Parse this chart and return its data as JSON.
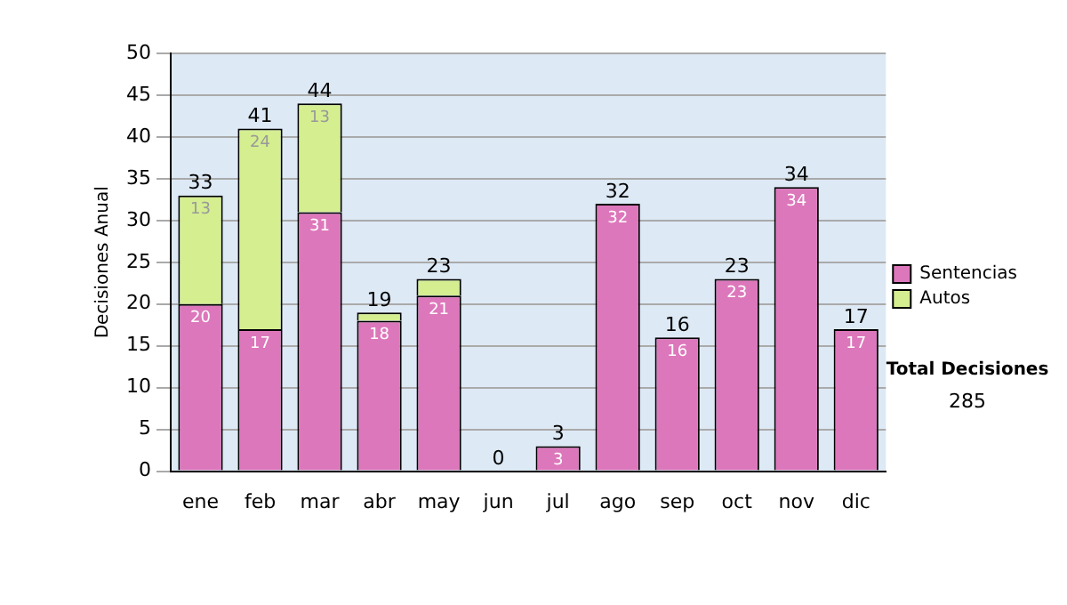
{
  "chart_data": {
    "type": "bar",
    "stacked": true,
    "ylabel": "Decisiones Anual",
    "categories": [
      "ene",
      "feb",
      "mar",
      "abr",
      "may",
      "jun",
      "jul",
      "ago",
      "sep",
      "oct",
      "nov",
      "dic"
    ],
    "series": [
      {
        "name": "Sentencias",
        "color": "#dd77bb",
        "values": [
          20,
          17,
          31,
          18,
          21,
          0,
          3,
          32,
          16,
          23,
          34,
          17
        ],
        "value_labels": [
          "20",
          "17",
          "31",
          "18",
          "21",
          null,
          "3",
          "32",
          "16",
          "23",
          "34",
          "17"
        ]
      },
      {
        "name": "Autos",
        "color": "#d4ee90",
        "values": [
          13,
          24,
          13,
          1,
          2,
          0,
          0,
          0,
          0,
          0,
          0,
          0
        ],
        "value_labels": [
          "13",
          "24",
          "13",
          null,
          null,
          null,
          null,
          null,
          null,
          null,
          null,
          null
        ]
      }
    ],
    "totals": [
      "33",
      "41",
      "44",
      "19",
      "23",
      "0",
      "3",
      "32",
      "16",
      "23",
      "34",
      "17"
    ],
    "ylim": [
      0,
      50
    ],
    "yticks": [
      0,
      5,
      10,
      15,
      20,
      25,
      30,
      35,
      40,
      45,
      50
    ],
    "grid": "y",
    "legend": "right",
    "annotations": [
      "Total Decisiones",
      "285"
    ]
  }
}
